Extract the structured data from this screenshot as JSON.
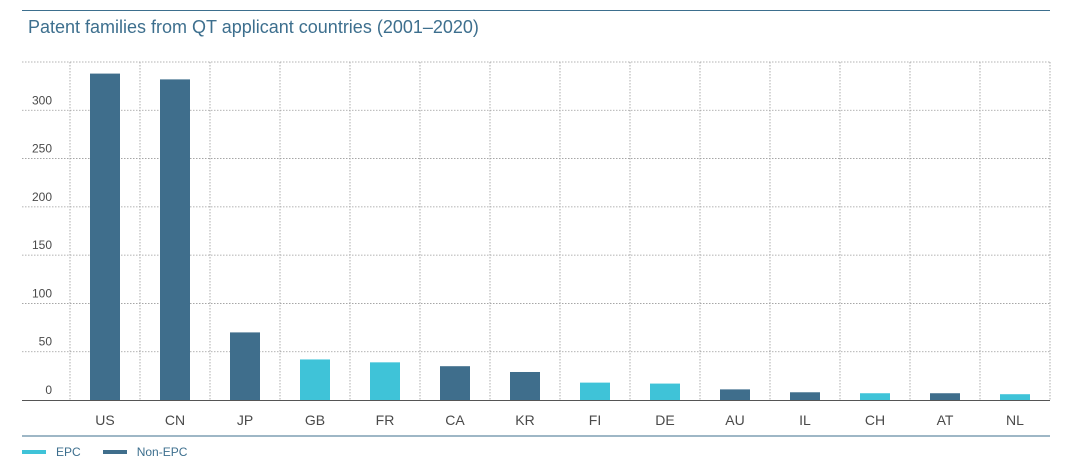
{
  "title": "Patent families from QT applicant countries (2001–2020)",
  "colors": {
    "epc": "#3fc3d8",
    "non_epc": "#3f6e8c",
    "accent": "#3d6f8e"
  },
  "legend": [
    {
      "label": "EPC",
      "key": "epc"
    },
    {
      "label": "Non-EPC",
      "key": "non_epc"
    }
  ],
  "chart_data": {
    "type": "bar",
    "title": "Patent families from QT applicant countries (2001–2020)",
    "xlabel": "",
    "ylabel": "",
    "categories": [
      "US",
      "CN",
      "JP",
      "GB",
      "FR",
      "CA",
      "KR",
      "FI",
      "DE",
      "AU",
      "IL",
      "CH",
      "AT",
      "NL"
    ],
    "values": [
      338,
      332,
      70,
      42,
      39,
      35,
      29,
      18,
      17,
      11,
      8,
      7,
      7,
      6
    ],
    "groups": [
      "Non-EPC",
      "Non-EPC",
      "Non-EPC",
      "EPC",
      "EPC",
      "Non-EPC",
      "Non-EPC",
      "EPC",
      "EPC",
      "Non-EPC",
      "Non-EPC",
      "EPC",
      "Non-EPC",
      "EPC"
    ],
    "yticks": [
      0,
      50,
      100,
      150,
      200,
      250,
      300
    ],
    "ylim": [
      0,
      350
    ],
    "grid": true,
    "legend_position": "bottom-left"
  }
}
